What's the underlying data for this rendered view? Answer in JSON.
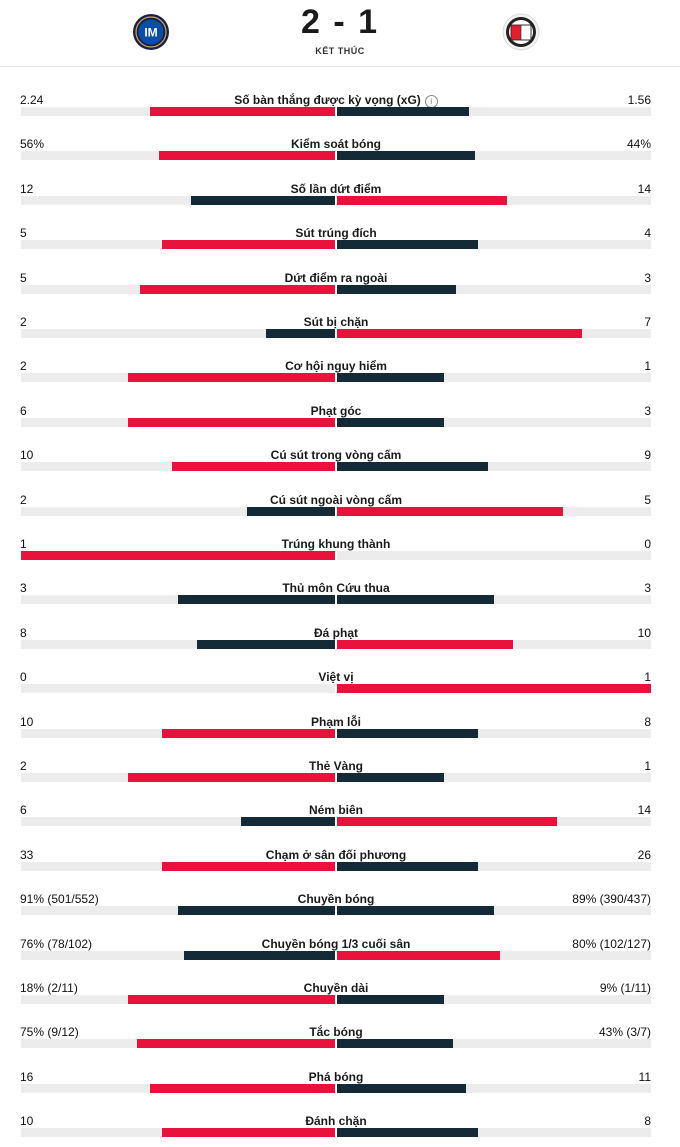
{
  "match": {
    "score": "2 - 1",
    "status": "KẾT THÚC",
    "home_logo": "inter-crest-icon",
    "away_logo": "feyenoord-crest-icon"
  },
  "colors": {
    "leader": "#e8123c",
    "trailer": "#142a36",
    "track": "#ececec"
  },
  "stats": [
    {
      "label": "Số bàn thắng được kỳ vọng (xG)",
      "home": "2.24",
      "away": "1.56",
      "info": true,
      "home_frac": 0.59,
      "away_frac": 0.42
    },
    {
      "label": "Kiểm soát bóng",
      "home": "56%",
      "away": "44%",
      "home_frac": 0.56,
      "away_frac": 0.44
    },
    {
      "label": "Số lần dứt điểm",
      "home": "12",
      "away": "14",
      "home_frac": 0.46,
      "away_frac": 0.54
    },
    {
      "label": "Sút trúng đích",
      "home": "5",
      "away": "4",
      "home_frac": 0.55,
      "away_frac": 0.45
    },
    {
      "label": "Dứt điểm ra ngoài",
      "home": "5",
      "away": "3",
      "home_frac": 0.62,
      "away_frac": 0.38
    },
    {
      "label": "Sút bị chặn",
      "home": "2",
      "away": "7",
      "home_frac": 0.22,
      "away_frac": 0.78
    },
    {
      "label": "Cơ hội nguy hiểm",
      "home": "2",
      "away": "1",
      "home_frac": 0.66,
      "away_frac": 0.34
    },
    {
      "label": "Phạt góc",
      "home": "6",
      "away": "3",
      "home_frac": 0.66,
      "away_frac": 0.34
    },
    {
      "label": "Cú sút trong vòng cấm",
      "home": "10",
      "away": "9",
      "home_frac": 0.52,
      "away_frac": 0.48
    },
    {
      "label": "Cú sút ngoài vòng cấm",
      "home": "2",
      "away": "5",
      "home_frac": 0.28,
      "away_frac": 0.72
    },
    {
      "label": "Trúng khung thành",
      "home": "1",
      "away": "0",
      "home_frac": 1.0,
      "away_frac": 0.0
    },
    {
      "label": "Thủ môn Cứu thua",
      "home": "3",
      "away": "3",
      "home_frac": 0.5,
      "away_frac": 0.5
    },
    {
      "label": "Đá phạt",
      "home": "8",
      "away": "10",
      "home_frac": 0.44,
      "away_frac": 0.56
    },
    {
      "label": "Việt vị",
      "home": "0",
      "away": "1",
      "home_frac": 0.0,
      "away_frac": 1.0
    },
    {
      "label": "Phạm lỗi",
      "home": "10",
      "away": "8",
      "home_frac": 0.55,
      "away_frac": 0.45
    },
    {
      "label": "Thẻ Vàng",
      "home": "2",
      "away": "1",
      "home_frac": 0.66,
      "away_frac": 0.34
    },
    {
      "label": "Ném biên",
      "home": "6",
      "away": "14",
      "home_frac": 0.3,
      "away_frac": 0.7
    },
    {
      "label": "Chạm ở sân đối phương",
      "home": "33",
      "away": "26",
      "home_frac": 0.55,
      "away_frac": 0.45
    },
    {
      "label": "Chuyền bóng",
      "home": "91% (501/552)",
      "away": "89% (390/437)",
      "home_frac": 0.5,
      "away_frac": 0.5
    },
    {
      "label": "Chuyền bóng 1/3 cuối sân",
      "home": "76% (78/102)",
      "away": "80% (102/127)",
      "home_frac": 0.48,
      "away_frac": 0.52
    },
    {
      "label": "Chuyền dài",
      "home": "18% (2/11)",
      "away": "9% (1/11)",
      "home_frac": 0.66,
      "away_frac": 0.34
    },
    {
      "label": "Tắc bóng",
      "home": "75% (9/12)",
      "away": "43% (3/7)",
      "home_frac": 0.63,
      "away_frac": 0.37
    },
    {
      "label": "Phá bóng",
      "home": "16",
      "away": "11",
      "home_frac": 0.59,
      "away_frac": 0.41
    },
    {
      "label": "Đánh chặn",
      "home": "10",
      "away": "8",
      "home_frac": 0.55,
      "away_frac": 0.45
    }
  ]
}
